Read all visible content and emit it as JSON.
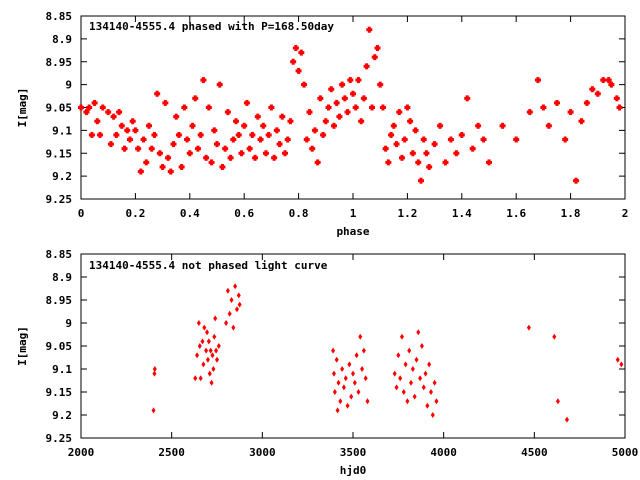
{
  "chart_data": [
    {
      "type": "scatter",
      "title": "134140-4555.4 phased with P=168.50day",
      "xlabel": "phase",
      "ylabel": "I[mag]",
      "xlim": [
        0,
        2
      ],
      "ylim": [
        9.25,
        8.85
      ],
      "y_inverted": true,
      "grid": false,
      "marker_color": "#ff0000",
      "x_ticks": [
        0,
        0.2,
        0.4,
        0.6,
        0.8,
        1,
        1.2,
        1.4,
        1.6,
        1.8,
        2
      ],
      "x_tick_labels": [
        "0",
        "0.2",
        "0.4",
        "0.6",
        "0.8",
        "1",
        "1.2",
        "1.4",
        "1.6",
        "1.8",
        "2"
      ],
      "y_ticks": [
        8.85,
        8.9,
        8.95,
        9.0,
        9.05,
        9.1,
        9.15,
        9.2,
        9.25
      ],
      "y_tick_labels": [
        "8.85",
        "8.9",
        "8.95",
        "9",
        "9.05",
        "9.1",
        "9.15",
        "9.2",
        "9.25"
      ],
      "points": [
        [
          0.0,
          9.05
        ],
        [
          0.02,
          9.06
        ],
        [
          0.03,
          9.05
        ],
        [
          0.04,
          9.11
        ],
        [
          0.05,
          9.04
        ],
        [
          0.06,
          9.08
        ],
        [
          0.07,
          9.11
        ],
        [
          0.08,
          9.05
        ],
        [
          0.1,
          9.06
        ],
        [
          0.11,
          9.13
        ],
        [
          0.12,
          9.07
        ],
        [
          0.13,
          9.11
        ],
        [
          0.14,
          9.06
        ],
        [
          0.15,
          9.09
        ],
        [
          0.16,
          9.14
        ],
        [
          0.17,
          9.1
        ],
        [
          0.18,
          9.12
        ],
        [
          0.19,
          9.08
        ],
        [
          0.2,
          9.1
        ],
        [
          0.21,
          9.14
        ],
        [
          0.22,
          9.19
        ],
        [
          0.23,
          9.12
        ],
        [
          0.24,
          9.17
        ],
        [
          0.25,
          9.09
        ],
        [
          0.26,
          9.14
        ],
        [
          0.27,
          9.11
        ],
        [
          0.28,
          9.02
        ],
        [
          0.29,
          9.15
        ],
        [
          0.3,
          9.18
        ],
        [
          0.31,
          9.04
        ],
        [
          0.32,
          9.16
        ],
        [
          0.33,
          9.19
        ],
        [
          0.34,
          9.13
        ],
        [
          0.35,
          9.07
        ],
        [
          0.36,
          9.11
        ],
        [
          0.37,
          9.18
        ],
        [
          0.38,
          9.05
        ],
        [
          0.39,
          9.12
        ],
        [
          0.4,
          9.15
        ],
        [
          0.41,
          9.09
        ],
        [
          0.42,
          9.03
        ],
        [
          0.43,
          9.14
        ],
        [
          0.44,
          9.11
        ],
        [
          0.45,
          8.99
        ],
        [
          0.46,
          9.16
        ],
        [
          0.47,
          9.05
        ],
        [
          0.48,
          9.17
        ],
        [
          0.49,
          9.1
        ],
        [
          0.5,
          9.13
        ],
        [
          0.51,
          9.0
        ],
        [
          0.52,
          9.18
        ],
        [
          0.53,
          9.14
        ],
        [
          0.54,
          9.06
        ],
        [
          0.55,
          9.16
        ],
        [
          0.56,
          9.12
        ],
        [
          0.57,
          9.08
        ],
        [
          0.58,
          9.11
        ],
        [
          0.59,
          9.15
        ],
        [
          0.6,
          9.09
        ],
        [
          0.61,
          9.04
        ],
        [
          0.62,
          9.14
        ],
        [
          0.63,
          9.11
        ],
        [
          0.64,
          9.16
        ],
        [
          0.65,
          9.07
        ],
        [
          0.66,
          9.12
        ],
        [
          0.67,
          9.09
        ],
        [
          0.68,
          9.15
        ],
        [
          0.69,
          9.11
        ],
        [
          0.7,
          9.05
        ],
        [
          0.71,
          9.16
        ],
        [
          0.72,
          9.1
        ],
        [
          0.73,
          9.13
        ],
        [
          0.74,
          9.07
        ],
        [
          0.75,
          9.15
        ],
        [
          0.76,
          9.12
        ],
        [
          0.77,
          9.08
        ],
        [
          0.78,
          8.95
        ],
        [
          0.79,
          8.92
        ],
        [
          0.8,
          8.97
        ],
        [
          0.81,
          8.93
        ],
        [
          0.82,
          9.0
        ],
        [
          0.83,
          9.12
        ],
        [
          0.84,
          9.06
        ],
        [
          0.85,
          9.14
        ],
        [
          0.86,
          9.1
        ],
        [
          0.87,
          9.17
        ],
        [
          0.88,
          9.03
        ],
        [
          0.89,
          9.11
        ],
        [
          0.9,
          9.08
        ],
        [
          0.91,
          9.05
        ],
        [
          0.92,
          9.01
        ],
        [
          0.93,
          9.09
        ],
        [
          0.94,
          9.04
        ],
        [
          0.95,
          9.07
        ],
        [
          0.96,
          9.0
        ],
        [
          0.97,
          9.03
        ],
        [
          0.98,
          9.06
        ],
        [
          0.99,
          8.99
        ],
        [
          1.0,
          9.02
        ],
        [
          1.01,
          9.05
        ],
        [
          1.02,
          8.99
        ],
        [
          1.03,
          9.08
        ],
        [
          1.04,
          9.03
        ],
        [
          1.05,
          8.96
        ],
        [
          1.06,
          8.88
        ],
        [
          1.07,
          9.05
        ],
        [
          1.08,
          8.94
        ],
        [
          1.09,
          8.92
        ],
        [
          1.1,
          9.0
        ],
        [
          1.11,
          9.05
        ],
        [
          1.12,
          9.14
        ],
        [
          1.13,
          9.17
        ],
        [
          1.14,
          9.11
        ],
        [
          1.15,
          9.09
        ],
        [
          1.16,
          9.13
        ],
        [
          1.17,
          9.06
        ],
        [
          1.18,
          9.16
        ],
        [
          1.19,
          9.12
        ],
        [
          1.2,
          9.05
        ],
        [
          1.21,
          9.08
        ],
        [
          1.22,
          9.15
        ],
        [
          1.23,
          9.1
        ],
        [
          1.24,
          9.17
        ],
        [
          1.25,
          9.21
        ],
        [
          1.26,
          9.12
        ],
        [
          1.27,
          9.15
        ],
        [
          1.28,
          9.18
        ],
        [
          1.3,
          9.13
        ],
        [
          1.32,
          9.09
        ],
        [
          1.34,
          9.17
        ],
        [
          1.36,
          9.12
        ],
        [
          1.38,
          9.15
        ],
        [
          1.4,
          9.11
        ],
        [
          1.42,
          9.03
        ],
        [
          1.44,
          9.14
        ],
        [
          1.46,
          9.09
        ],
        [
          1.48,
          9.12
        ],
        [
          1.5,
          9.17
        ],
        [
          1.55,
          9.09
        ],
        [
          1.6,
          9.12
        ],
        [
          1.65,
          9.06
        ],
        [
          1.68,
          8.99
        ],
        [
          1.7,
          9.05
        ],
        [
          1.72,
          9.09
        ],
        [
          1.75,
          9.04
        ],
        [
          1.78,
          9.12
        ],
        [
          1.8,
          9.06
        ],
        [
          1.82,
          9.21
        ],
        [
          1.84,
          9.08
        ],
        [
          1.86,
          9.04
        ],
        [
          1.88,
          9.01
        ],
        [
          1.9,
          9.02
        ],
        [
          1.92,
          8.99
        ],
        [
          1.94,
          8.99
        ],
        [
          1.95,
          9.0
        ],
        [
          1.97,
          9.03
        ],
        [
          1.98,
          9.05
        ]
      ]
    },
    {
      "type": "scatter",
      "title": "134140-4555.4 not phased light curve",
      "xlabel": "hjd0",
      "ylabel": "I[mag]",
      "xlim": [
        2000,
        5000
      ],
      "ylim": [
        9.25,
        8.85
      ],
      "y_inverted": true,
      "grid": false,
      "marker_color": "#ff0000",
      "x_ticks": [
        2000,
        2500,
        3000,
        3500,
        4000,
        4500,
        5000
      ],
      "x_tick_labels": [
        "2000",
        "2500",
        "3000",
        "3500",
        "4000",
        "4500",
        "5000"
      ],
      "y_ticks": [
        8.85,
        8.9,
        8.95,
        9.0,
        9.05,
        9.1,
        9.15,
        9.2,
        9.25
      ],
      "y_tick_labels": [
        "8.85",
        "8.9",
        "8.95",
        "9",
        "9.05",
        "9.1",
        "9.15",
        "9.2",
        "9.25"
      ],
      "points": [
        [
          2400,
          9.19
        ],
        [
          2405,
          9.11
        ],
        [
          2407,
          9.1
        ],
        [
          2630,
          9.12
        ],
        [
          2640,
          9.07
        ],
        [
          2650,
          9.0
        ],
        [
          2655,
          9.05
        ],
        [
          2660,
          9.12
        ],
        [
          2670,
          9.04
        ],
        [
          2675,
          9.09
        ],
        [
          2680,
          9.01
        ],
        [
          2690,
          9.06
        ],
        [
          2695,
          9.02
        ],
        [
          2700,
          9.08
        ],
        [
          2705,
          9.04
        ],
        [
          2710,
          9.11
        ],
        [
          2715,
          9.06
        ],
        [
          2720,
          9.13
        ],
        [
          2725,
          9.07
        ],
        [
          2730,
          9.1
        ],
        [
          2735,
          9.03
        ],
        [
          2740,
          8.99
        ],
        [
          2745,
          9.06
        ],
        [
          2750,
          9.08
        ],
        [
          2760,
          9.05
        ],
        [
          2800,
          9.0
        ],
        [
          2810,
          8.93
        ],
        [
          2820,
          8.98
        ],
        [
          2830,
          8.95
        ],
        [
          2840,
          9.01
        ],
        [
          2850,
          8.92
        ],
        [
          2860,
          8.97
        ],
        [
          2870,
          8.94
        ],
        [
          2875,
          8.96
        ],
        [
          3390,
          9.06
        ],
        [
          3395,
          9.11
        ],
        [
          3400,
          9.15
        ],
        [
          3410,
          9.08
        ],
        [
          3415,
          9.19
        ],
        [
          3420,
          9.13
        ],
        [
          3430,
          9.17
        ],
        [
          3440,
          9.1
        ],
        [
          3450,
          9.14
        ],
        [
          3460,
          9.12
        ],
        [
          3470,
          9.18
        ],
        [
          3480,
          9.09
        ],
        [
          3490,
          9.16
        ],
        [
          3500,
          9.11
        ],
        [
          3510,
          9.13
        ],
        [
          3520,
          9.07
        ],
        [
          3530,
          9.15
        ],
        [
          3540,
          9.03
        ],
        [
          3550,
          9.1
        ],
        [
          3560,
          9.06
        ],
        [
          3570,
          9.12
        ],
        [
          3580,
          9.17
        ],
        [
          3730,
          9.11
        ],
        [
          3740,
          9.14
        ],
        [
          3750,
          9.07
        ],
        [
          3760,
          9.12
        ],
        [
          3770,
          9.03
        ],
        [
          3780,
          9.15
        ],
        [
          3790,
          9.09
        ],
        [
          3800,
          9.17
        ],
        [
          3810,
          9.06
        ],
        [
          3820,
          9.13
        ],
        [
          3830,
          9.1
        ],
        [
          3840,
          9.16
        ],
        [
          3850,
          9.08
        ],
        [
          3860,
          9.02
        ],
        [
          3870,
          9.12
        ],
        [
          3880,
          9.05
        ],
        [
          3890,
          9.14
        ],
        [
          3900,
          9.11
        ],
        [
          3910,
          9.18
        ],
        [
          3920,
          9.09
        ],
        [
          3930,
          9.15
        ],
        [
          3940,
          9.2
        ],
        [
          3950,
          9.13
        ],
        [
          3960,
          9.17
        ],
        [
          4470,
          9.01
        ],
        [
          4610,
          9.03
        ],
        [
          4630,
          9.17
        ],
        [
          4680,
          9.21
        ],
        [
          4960,
          9.08
        ],
        [
          4980,
          9.09
        ]
      ]
    }
  ]
}
